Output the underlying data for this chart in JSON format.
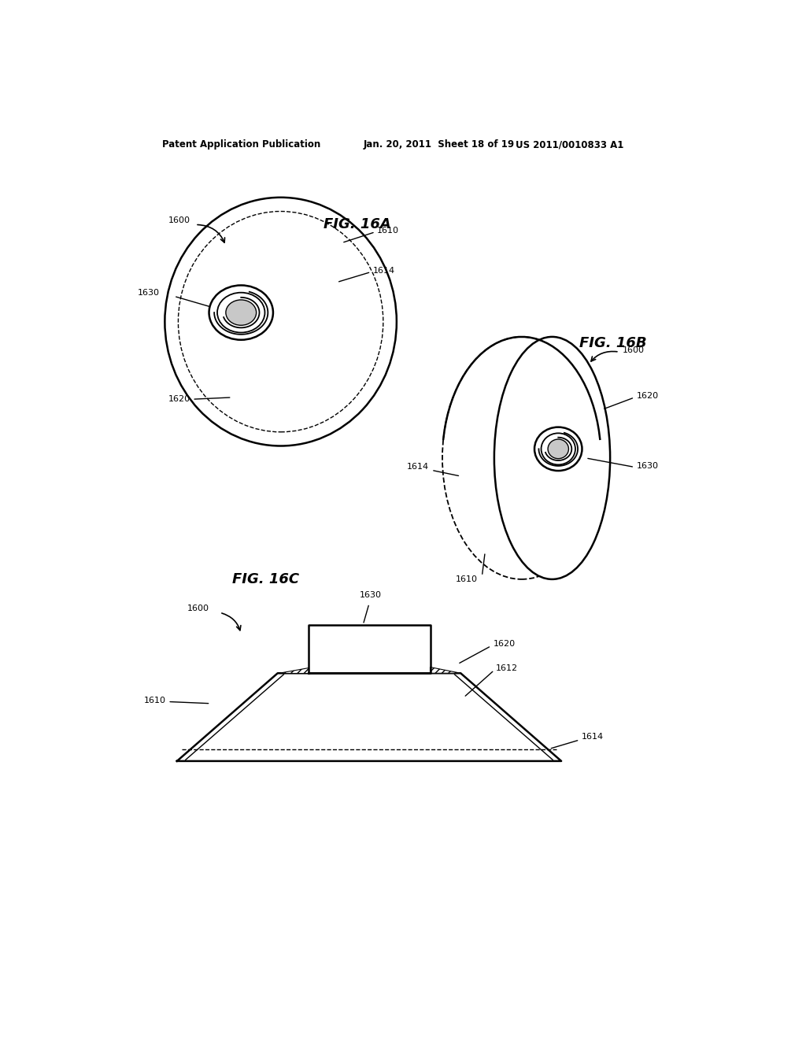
{
  "bg_color": "#ffffff",
  "header_left": "Patent Application Publication",
  "header_mid": "Jan. 20, 2011  Sheet 18 of 19",
  "header_right": "US 2011/0010833 A1",
  "fig_16a_title": "FIG. 16A",
  "fig_16b_title": "FIG. 16B",
  "fig_16c_title": "FIG. 16C",
  "line_color": "#000000",
  "label_fontsize": 8,
  "title_fontsize": 13,
  "header_fontsize": 8.5
}
